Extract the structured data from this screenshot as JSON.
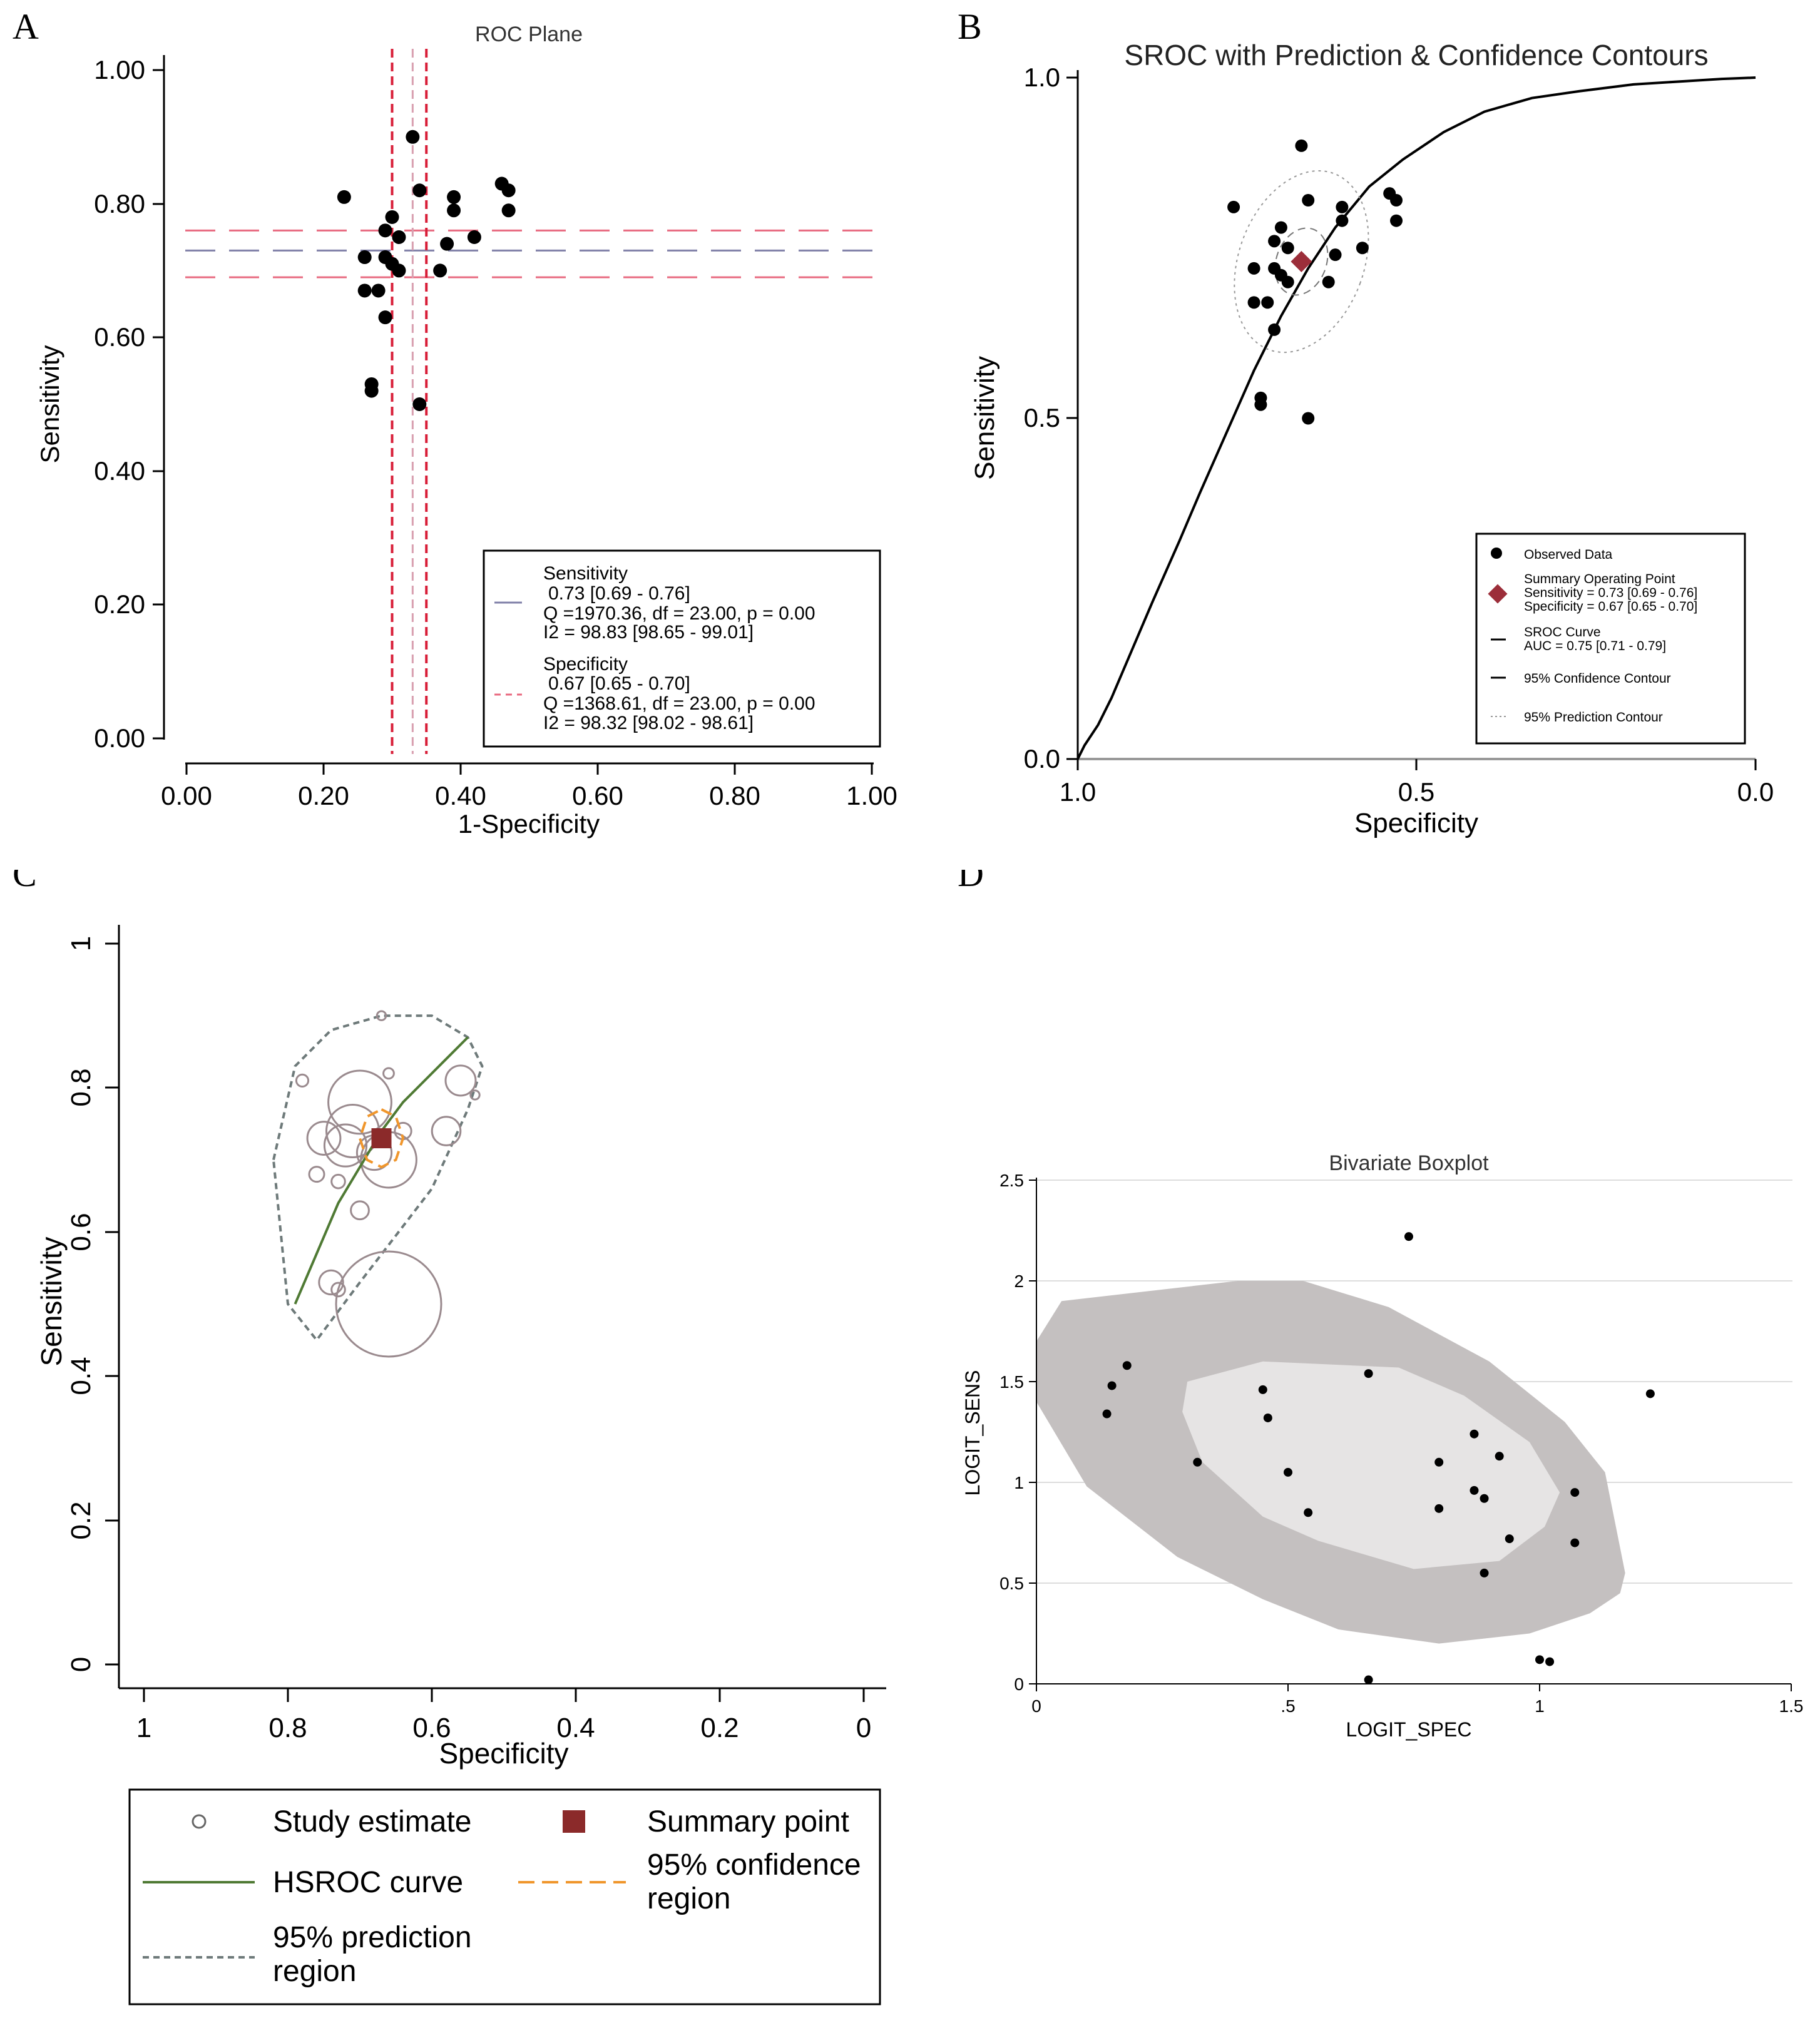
{
  "panels": {
    "A": {
      "letter": "A"
    },
    "B": {
      "letter": "B"
    },
    "C": {
      "letter": "C"
    },
    "D": {
      "letter": "D"
    }
  },
  "colors": {
    "points": "#000000",
    "sens_line": "#8080a8",
    "sens_ci": "#e86a80",
    "spec_line": "#d8a0b0",
    "spec_ci": "#d81e38",
    "summary_diamond": "#9c2e3a",
    "summary_square": "#8b2a2a",
    "hsroc_curve": "#4f7a34",
    "ci_region": "#f0962c",
    "prediction_region": "#6e7a7a",
    "study_circle": "#9a8a8e",
    "boxplot_outer": "#c4c0c0",
    "boxplot_inner": "#e6e4e4"
  },
  "chart_data": [
    {
      "id": "A",
      "type": "scatter",
      "title": "ROC Plane",
      "xlabel": "1-Specificity",
      "ylabel": "Sensitivity",
      "xlim": [
        0,
        1
      ],
      "ylim": [
        0,
        1
      ],
      "xticks": [
        "0.00",
        "0.20",
        "0.40",
        "0.60",
        "0.80",
        "1.00"
      ],
      "yticks": [
        "0.00",
        "0.20",
        "0.40",
        "0.60",
        "0.80",
        "1.00"
      ],
      "points": [
        {
          "x": 0.33,
          "y": 0.9
        },
        {
          "x": 0.23,
          "y": 0.81
        },
        {
          "x": 0.34,
          "y": 0.82
        },
        {
          "x": 0.46,
          "y": 0.83
        },
        {
          "x": 0.39,
          "y": 0.81
        },
        {
          "x": 0.47,
          "y": 0.82
        },
        {
          "x": 0.47,
          "y": 0.79
        },
        {
          "x": 0.39,
          "y": 0.79
        },
        {
          "x": 0.3,
          "y": 0.78
        },
        {
          "x": 0.29,
          "y": 0.76
        },
        {
          "x": 0.31,
          "y": 0.75
        },
        {
          "x": 0.42,
          "y": 0.75
        },
        {
          "x": 0.38,
          "y": 0.74
        },
        {
          "x": 0.26,
          "y": 0.72
        },
        {
          "x": 0.29,
          "y": 0.72
        },
        {
          "x": 0.3,
          "y": 0.71
        },
        {
          "x": 0.31,
          "y": 0.7
        },
        {
          "x": 0.37,
          "y": 0.7
        },
        {
          "x": 0.26,
          "y": 0.67
        },
        {
          "x": 0.28,
          "y": 0.67
        },
        {
          "x": 0.29,
          "y": 0.63
        },
        {
          "x": 0.27,
          "y": 0.53
        },
        {
          "x": 0.27,
          "y": 0.52
        },
        {
          "x": 0.34,
          "y": 0.5
        }
      ],
      "sens_summary": {
        "estimate": 0.73,
        "ci": [
          0.69,
          0.76
        ]
      },
      "spec_summary": {
        "estimate": 0.67,
        "ci": [
          0.65,
          0.7
        ]
      },
      "legend": {
        "sens_title": "Sensitivity",
        "sens_ci": "0.73 [0.69 - 0.76]",
        "sens_q": "Q =1970.36, df = 23.00, p =  0.00",
        "sens_i2": "I2 = 98.83 [98.65 - 99.01]",
        "spec_title": "Specificity",
        "spec_ci": "0.67 [0.65 - 0.70]",
        "spec_q": "Q =1368.61, df = 23.00, p =  0.00",
        "spec_i2": "I2 = 98.32 [98.02 - 98.61]"
      }
    },
    {
      "id": "B",
      "type": "scatter",
      "title": "SROC with Prediction & Confidence Contours",
      "xlabel": "Specificity",
      "ylabel": "Sensitivity",
      "xlim": [
        1.0,
        0.0
      ],
      "ylim": [
        0.0,
        1.0
      ],
      "xticks": [
        "1.0",
        "0.5",
        "0.0"
      ],
      "yticks": [
        "0.0",
        "0.5",
        "1.0"
      ],
      "points": [
        {
          "x": 0.67,
          "y": 0.9
        },
        {
          "x": 0.77,
          "y": 0.81
        },
        {
          "x": 0.66,
          "y": 0.82
        },
        {
          "x": 0.54,
          "y": 0.83
        },
        {
          "x": 0.61,
          "y": 0.81
        },
        {
          "x": 0.53,
          "y": 0.82
        },
        {
          "x": 0.53,
          "y": 0.79
        },
        {
          "x": 0.61,
          "y": 0.79
        },
        {
          "x": 0.7,
          "y": 0.78
        },
        {
          "x": 0.71,
          "y": 0.76
        },
        {
          "x": 0.69,
          "y": 0.75
        },
        {
          "x": 0.58,
          "y": 0.75
        },
        {
          "x": 0.62,
          "y": 0.74
        },
        {
          "x": 0.74,
          "y": 0.72
        },
        {
          "x": 0.71,
          "y": 0.72
        },
        {
          "x": 0.7,
          "y": 0.71
        },
        {
          "x": 0.69,
          "y": 0.7
        },
        {
          "x": 0.63,
          "y": 0.7
        },
        {
          "x": 0.74,
          "y": 0.67
        },
        {
          "x": 0.72,
          "y": 0.67
        },
        {
          "x": 0.71,
          "y": 0.63
        },
        {
          "x": 0.73,
          "y": 0.53
        },
        {
          "x": 0.73,
          "y": 0.52
        },
        {
          "x": 0.66,
          "y": 0.5
        }
      ],
      "summary_point": {
        "spec": 0.67,
        "sens": 0.73
      },
      "sroc_curve": {
        "spec": [
          1.0,
          0.99,
          0.97,
          0.95,
          0.92,
          0.89,
          0.85,
          0.82,
          0.78,
          0.74,
          0.7,
          0.66,
          0.62,
          0.57,
          0.52,
          0.46,
          0.4,
          0.33,
          0.26,
          0.18,
          0.1,
          0.05,
          0.0
        ],
        "sens": [
          0.0,
          0.02,
          0.05,
          0.09,
          0.16,
          0.23,
          0.32,
          0.39,
          0.48,
          0.57,
          0.65,
          0.72,
          0.78,
          0.84,
          0.88,
          0.92,
          0.95,
          0.97,
          0.98,
          0.99,
          0.995,
          0.998,
          1.0
        ]
      },
      "legend": {
        "observed": "Observed Data",
        "summary_title": "Summary Operating Point",
        "summary_sens": "Sensitivity = 0.73 [0.69 - 0.76]",
        "summary_spec": "Specificity = 0.67 [0.65 - 0.70]",
        "sroc_title": "SROC Curve",
        "sroc_auc": "AUC = 0.75 [0.71 - 0.79]",
        "confidence": "95% Confidence Contour",
        "prediction": "95% Prediction Contour"
      }
    },
    {
      "id": "C",
      "type": "scatter",
      "title": "",
      "xlabel": "Specificity",
      "ylabel": "Sensitivity",
      "xlim": [
        1,
        0
      ],
      "ylim": [
        0,
        1
      ],
      "xticks": [
        "1",
        "0.8",
        "0.6",
        "0.4",
        "0.2",
        "0"
      ],
      "yticks": [
        "0",
        "0.2",
        "0.4",
        "0.6",
        "0.8",
        "1"
      ],
      "studies": [
        {
          "spec": 0.67,
          "sens": 0.9,
          "weight": 0.06
        },
        {
          "spec": 0.78,
          "sens": 0.81,
          "weight": 0.08
        },
        {
          "spec": 0.66,
          "sens": 0.82,
          "weight": 0.07
        },
        {
          "spec": 0.56,
          "sens": 0.81,
          "weight": 0.2
        },
        {
          "spec": 0.54,
          "sens": 0.79,
          "weight": 0.06
        },
        {
          "spec": 0.7,
          "sens": 0.78,
          "weight": 0.42
        },
        {
          "spec": 0.71,
          "sens": 0.74,
          "weight": 0.35
        },
        {
          "spec": 0.58,
          "sens": 0.74,
          "weight": 0.19
        },
        {
          "spec": 0.72,
          "sens": 0.72,
          "weight": 0.28
        },
        {
          "spec": 0.75,
          "sens": 0.73,
          "weight": 0.22
        },
        {
          "spec": 0.66,
          "sens": 0.7,
          "weight": 0.37
        },
        {
          "spec": 0.68,
          "sens": 0.71,
          "weight": 0.23
        },
        {
          "spec": 0.64,
          "sens": 0.74,
          "weight": 0.11
        },
        {
          "spec": 0.76,
          "sens": 0.68,
          "weight": 0.1
        },
        {
          "spec": 0.73,
          "sens": 0.67,
          "weight": 0.09
        },
        {
          "spec": 0.7,
          "sens": 0.63,
          "weight": 0.12
        },
        {
          "spec": 0.74,
          "sens": 0.53,
          "weight": 0.16
        },
        {
          "spec": 0.73,
          "sens": 0.52,
          "weight": 0.09
        },
        {
          "spec": 0.66,
          "sens": 0.5,
          "weight": 0.7
        }
      ],
      "summary_point": {
        "spec": 0.67,
        "sens": 0.73
      },
      "hsroc_curve": {
        "spec": [
          0.79,
          0.76,
          0.73,
          0.7,
          0.67,
          0.64,
          0.61,
          0.58,
          0.55
        ],
        "sens": [
          0.5,
          0.57,
          0.64,
          0.69,
          0.74,
          0.78,
          0.81,
          0.84,
          0.87
        ]
      },
      "confidence_region": {
        "spec": [
          0.67,
          0.65,
          0.64,
          0.65,
          0.67,
          0.69,
          0.7,
          0.69,
          0.67
        ],
        "sens": [
          0.77,
          0.76,
          0.73,
          0.7,
          0.69,
          0.7,
          0.73,
          0.76,
          0.77
        ]
      },
      "prediction_region": {
        "spec": [
          0.82,
          0.79,
          0.74,
          0.67,
          0.6,
          0.55,
          0.53,
          0.55,
          0.6,
          0.7,
          0.76,
          0.8,
          0.82
        ],
        "sens": [
          0.7,
          0.83,
          0.88,
          0.9,
          0.9,
          0.87,
          0.83,
          0.77,
          0.66,
          0.53,
          0.45,
          0.5,
          0.7
        ]
      },
      "legend": {
        "study": "Study estimate",
        "summary": "Summary point",
        "hsroc": "HSROC curve",
        "confidence_1": "95% confidence",
        "confidence_2": "region",
        "prediction_1": "95% prediction",
        "prediction_2": "region"
      }
    },
    {
      "id": "D",
      "type": "scatter",
      "title": "Bivariate Boxplot",
      "xlabel": "LOGIT_SPEC",
      "ylabel": "LOGIT_SENS",
      "xlim": [
        0,
        1.5
      ],
      "ylim": [
        0,
        2.5
      ],
      "xticks": [
        "0",
        ".5",
        "1",
        "1.5"
      ],
      "yticks": [
        "0",
        "0.5",
        "1",
        "1.5",
        "2",
        "2.5"
      ],
      "points": [
        {
          "x": 0.74,
          "y": 2.22
        },
        {
          "x": 0.18,
          "y": 1.58
        },
        {
          "x": 0.15,
          "y": 1.48
        },
        {
          "x": 0.14,
          "y": 1.34
        },
        {
          "x": 0.66,
          "y": 1.54
        },
        {
          "x": 0.45,
          "y": 1.46
        },
        {
          "x": 0.46,
          "y": 1.32
        },
        {
          "x": 0.32,
          "y": 1.1
        },
        {
          "x": 0.5,
          "y": 1.05
        },
        {
          "x": 0.54,
          "y": 0.85
        },
        {
          "x": 0.87,
          "y": 1.24
        },
        {
          "x": 0.92,
          "y": 1.13
        },
        {
          "x": 0.8,
          "y": 1.1
        },
        {
          "x": 0.87,
          "y": 0.96
        },
        {
          "x": 0.89,
          "y": 0.92
        },
        {
          "x": 0.8,
          "y": 0.87
        },
        {
          "x": 0.94,
          "y": 0.72
        },
        {
          "x": 0.89,
          "y": 0.55
        },
        {
          "x": 1.07,
          "y": 0.95
        },
        {
          "x": 1.07,
          "y": 0.7
        },
        {
          "x": 1.22,
          "y": 1.44
        },
        {
          "x": 1.0,
          "y": 0.12
        },
        {
          "x": 1.02,
          "y": 0.11
        },
        {
          "x": 0.66,
          "y": 0.02
        }
      ],
      "outer_region": {
        "x": [
          0.0,
          0.05,
          0.4,
          0.53,
          0.7,
          0.9,
          1.05,
          1.13,
          1.17,
          1.16,
          1.1,
          0.98,
          0.8,
          0.6,
          0.45,
          0.28,
          0.1,
          0.0,
          0.0
        ],
        "y": [
          1.7,
          1.9,
          2.0,
          2.0,
          1.87,
          1.6,
          1.3,
          1.05,
          0.55,
          0.45,
          0.35,
          0.25,
          0.2,
          0.27,
          0.42,
          0.63,
          0.98,
          1.4,
          1.7
        ]
      },
      "inner_region": {
        "x": [
          0.3,
          0.45,
          0.72,
          0.85,
          0.98,
          1.04,
          1.01,
          0.92,
          0.75,
          0.56,
          0.45,
          0.33,
          0.29,
          0.3
        ],
        "y": [
          1.5,
          1.6,
          1.57,
          1.43,
          1.2,
          0.95,
          0.78,
          0.61,
          0.57,
          0.71,
          0.83,
          1.1,
          1.35,
          1.5
        ]
      }
    }
  ]
}
